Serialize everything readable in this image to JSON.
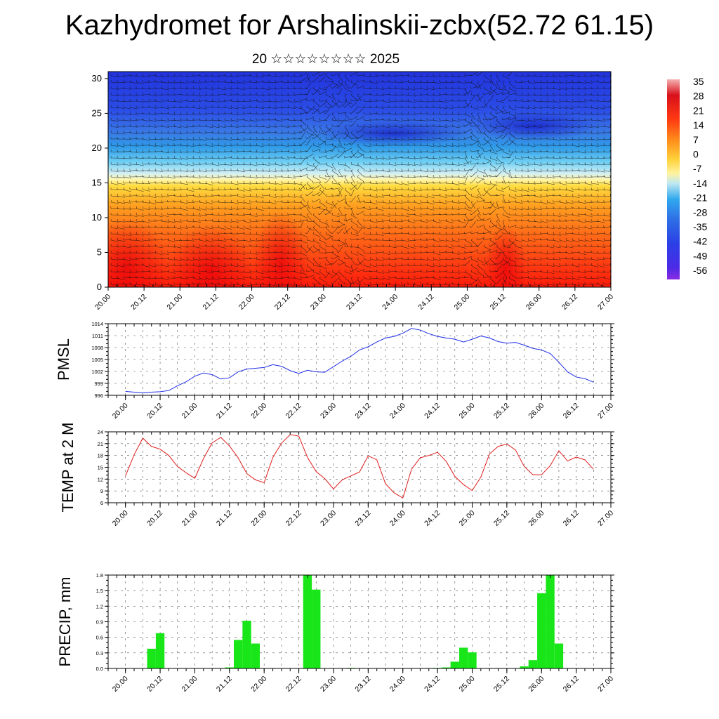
{
  "title": "Kazhydromet for Arshalinskii-zcbx(52.72 61.15)",
  "subtitle": "20 ☆☆☆☆☆☆☆☆ 2025",
  "colors": {
    "pmsl_line": "#1f2ee6",
    "temp_line": "#e01c1c",
    "precip_bar": "#19e619"
  },
  "x_tick_labels": [
    "20.00",
    "20.12",
    "21.00",
    "21.12",
    "22.00",
    "22.12",
    "23.00",
    "23.12",
    "24.00",
    "24.12",
    "25.00",
    "25.12",
    "26.00",
    "26.12",
    "27.00"
  ],
  "colorbar_labels": [
    "35",
    "28",
    "21",
    "14",
    "7",
    "0",
    "-7",
    "-14",
    "-21",
    "-28",
    "-35",
    "-42",
    "-49",
    "-56"
  ],
  "chart_data": [
    {
      "type": "heatmap",
      "name_hint": "cross-section",
      "ylabel": "",
      "ylim": [
        0,
        31
      ],
      "yticks": [
        "0",
        "5",
        "10",
        "15",
        "20",
        "25",
        "30"
      ],
      "xlim": [
        "20.00",
        "27.00"
      ],
      "colorbar": {
        "min": -56,
        "max": 35,
        "colors": [
          "#7a1fe6",
          "#2a2ae6",
          "#2f6fe6",
          "#35b8f0",
          "#bfe8f2",
          "#fff3a0",
          "#ffd23a",
          "#ff8a1a",
          "#ff3a12",
          "#e8101a",
          "#f0a0a0"
        ]
      },
      "overlay": "wind barbs"
    },
    {
      "type": "line",
      "ylabel": "PMSL",
      "ylim": [
        996,
        1014
      ],
      "yticks": [
        "996",
        "999",
        "1002",
        "1005",
        "1008",
        "1011",
        "1014"
      ],
      "x": [
        0,
        3,
        6,
        9,
        12,
        15,
        18,
        21,
        24,
        27,
        30,
        33,
        36,
        39,
        42,
        45,
        48,
        51,
        54,
        57,
        60,
        63,
        66,
        69,
        72,
        75,
        78,
        81,
        84,
        87,
        90,
        93,
        96,
        99,
        102,
        105,
        108,
        111,
        114,
        117,
        120,
        123,
        126,
        129,
        132,
        135,
        138,
        141,
        144,
        147,
        150,
        153,
        156,
        159,
        162
      ],
      "values": [
        997.0,
        996.8,
        996.6,
        996.8,
        996.9,
        997.2,
        998.4,
        999.4,
        1000.8,
        1001.6,
        1001.2,
        1000.1,
        1000.4,
        1001.9,
        1002.6,
        1002.8,
        1003.0,
        1003.7,
        1003.3,
        1002.2,
        1001.5,
        1002.3,
        1001.9,
        1001.8,
        1003.2,
        1004.6,
        1005.8,
        1007.4,
        1008.2,
        1009.4,
        1010.4,
        1010.8,
        1011.6,
        1012.8,
        1012.4,
        1011.5,
        1010.8,
        1010.4,
        1010.1,
        1009.4,
        1010.1,
        1010.9,
        1010.4,
        1009.5,
        1009.1,
        1009.3,
        1008.6,
        1007.8,
        1007.4,
        1006.5,
        1004.3,
        1001.9,
        1000.6,
        1000.2,
        999.3
      ]
    },
    {
      "type": "line",
      "ylabel": "TEMP at 2 M",
      "ylim": [
        6,
        24
      ],
      "yticks": [
        "6",
        "9",
        "12",
        "15",
        "18",
        "21",
        "24"
      ],
      "x": [
        0,
        3,
        6,
        9,
        12,
        15,
        18,
        21,
        24,
        27,
        30,
        33,
        36,
        39,
        42,
        45,
        48,
        51,
        54,
        57,
        60,
        63,
        66,
        69,
        72,
        75,
        78,
        81,
        84,
        87,
        90,
        93,
        96,
        99,
        102,
        105,
        108,
        111,
        114,
        117,
        120,
        123,
        126,
        129,
        132,
        135,
        138,
        141,
        144,
        147,
        150,
        153,
        156,
        159,
        162
      ],
      "values": [
        12.8,
        18.2,
        22.4,
        20.3,
        19.6,
        18.0,
        15.2,
        13.6,
        12.2,
        17.2,
        21.2,
        22.6,
        20.4,
        17.4,
        13.4,
        11.8,
        11.1,
        17.5,
        21.1,
        23.3,
        22.9,
        17.5,
        13.9,
        12.1,
        9.5,
        11.8,
        12.8,
        13.8,
        17.9,
        16.9,
        10.8,
        8.5,
        7.2,
        14.5,
        17.4,
        18.0,
        18.8,
        16.5,
        12.7,
        10.6,
        9.1,
        12.5,
        18.4,
        20.3,
        20.9,
        19.4,
        15.2,
        13.1,
        13.1,
        15.4,
        19.2,
        16.6,
        17.6,
        16.9,
        14.5
      ]
    },
    {
      "type": "bar",
      "ylabel": "PRECIP, mm",
      "ylim": [
        0,
        1.8
      ],
      "yticks": [
        "0.0",
        "0.3",
        "0.6",
        "0.9",
        "1.2",
        "1.5",
        "1.8"
      ],
      "x": [
        9,
        12,
        36,
        39,
        42,
        45,
        63,
        66,
        78,
        108,
        111,
        114,
        117,
        120,
        138,
        141,
        144,
        147,
        150
      ],
      "values": [
        0.38,
        0.68,
        0.02,
        0.55,
        0.92,
        0.48,
        1.8,
        1.52,
        0.01,
        0.01,
        0.02,
        0.13,
        0.4,
        0.31,
        0.04,
        0.16,
        1.45,
        1.8,
        0.48
      ]
    }
  ]
}
